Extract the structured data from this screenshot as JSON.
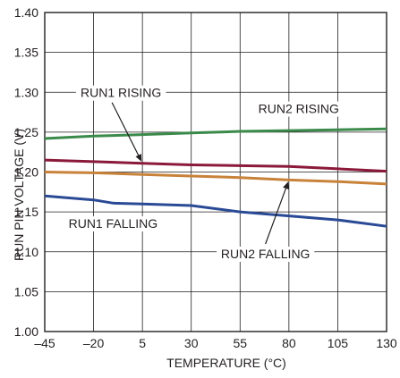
{
  "chart_data": {
    "type": "line",
    "xlabel": "TEMPERATURE (°C)",
    "ylabel": "RUN PIN VOLTAGE (V)",
    "xlim": [
      -45,
      130
    ],
    "ylim": [
      1.0,
      1.4
    ],
    "x_ticks": [
      -45,
      -20,
      5,
      30,
      55,
      80,
      105,
      130
    ],
    "x_tick_labels": [
      "–45",
      "–20",
      "5",
      "30",
      "55",
      "80",
      "105",
      "130"
    ],
    "y_ticks": [
      1.0,
      1.05,
      1.1,
      1.15,
      1.2,
      1.25,
      1.3,
      1.35,
      1.4
    ],
    "y_tick_labels": [
      "1.00",
      "1.05",
      "1.10",
      "1.15",
      "1.20",
      "1.25",
      "1.30",
      "1.35",
      "1.40"
    ],
    "grid": true,
    "legend": "none",
    "series": [
      {
        "name": "RUN2 RISING",
        "color": "#3a8a4a",
        "x": [
          -45,
          -20,
          5,
          30,
          55,
          80,
          105,
          130
        ],
        "y": [
          1.242,
          1.245,
          1.247,
          1.249,
          1.251,
          1.252,
          1.253,
          1.254
        ]
      },
      {
        "name": "RUN1 RISING",
        "color": "#8b1a3a",
        "x": [
          -45,
          -20,
          5,
          30,
          55,
          80,
          105,
          130
        ],
        "y": [
          1.215,
          1.213,
          1.211,
          1.209,
          1.208,
          1.207,
          1.204,
          1.201
        ]
      },
      {
        "name": "RUN2 FALLING",
        "color": "#c8823a",
        "x": [
          -45,
          -20,
          5,
          30,
          55,
          80,
          105,
          130
        ],
        "y": [
          1.2,
          1.199,
          1.197,
          1.195,
          1.193,
          1.19,
          1.188,
          1.185
        ]
      },
      {
        "name": "RUN1 FALLING",
        "color": "#2a4a96",
        "x": [
          -45,
          -20,
          -10,
          5,
          30,
          55,
          80,
          105,
          130
        ],
        "y": [
          1.17,
          1.165,
          1.161,
          1.16,
          1.158,
          1.15,
          1.145,
          1.14,
          1.132
        ]
      }
    ],
    "annotations": [
      {
        "text": "RUN1 RISING",
        "x": -6,
        "y": 1.295,
        "arrow_to": [
          5,
          1.211
        ]
      },
      {
        "text": "RUN2 RISING",
        "x": 85,
        "y": 1.275,
        "arrow_to": null
      },
      {
        "text": "RUN1 FALLING",
        "x": -10,
        "y": 1.131,
        "arrow_to": null
      },
      {
        "text": "RUN2 FALLING",
        "x": 68,
        "y": 1.093,
        "arrow_to": [
          80,
          1.19
        ]
      }
    ]
  }
}
